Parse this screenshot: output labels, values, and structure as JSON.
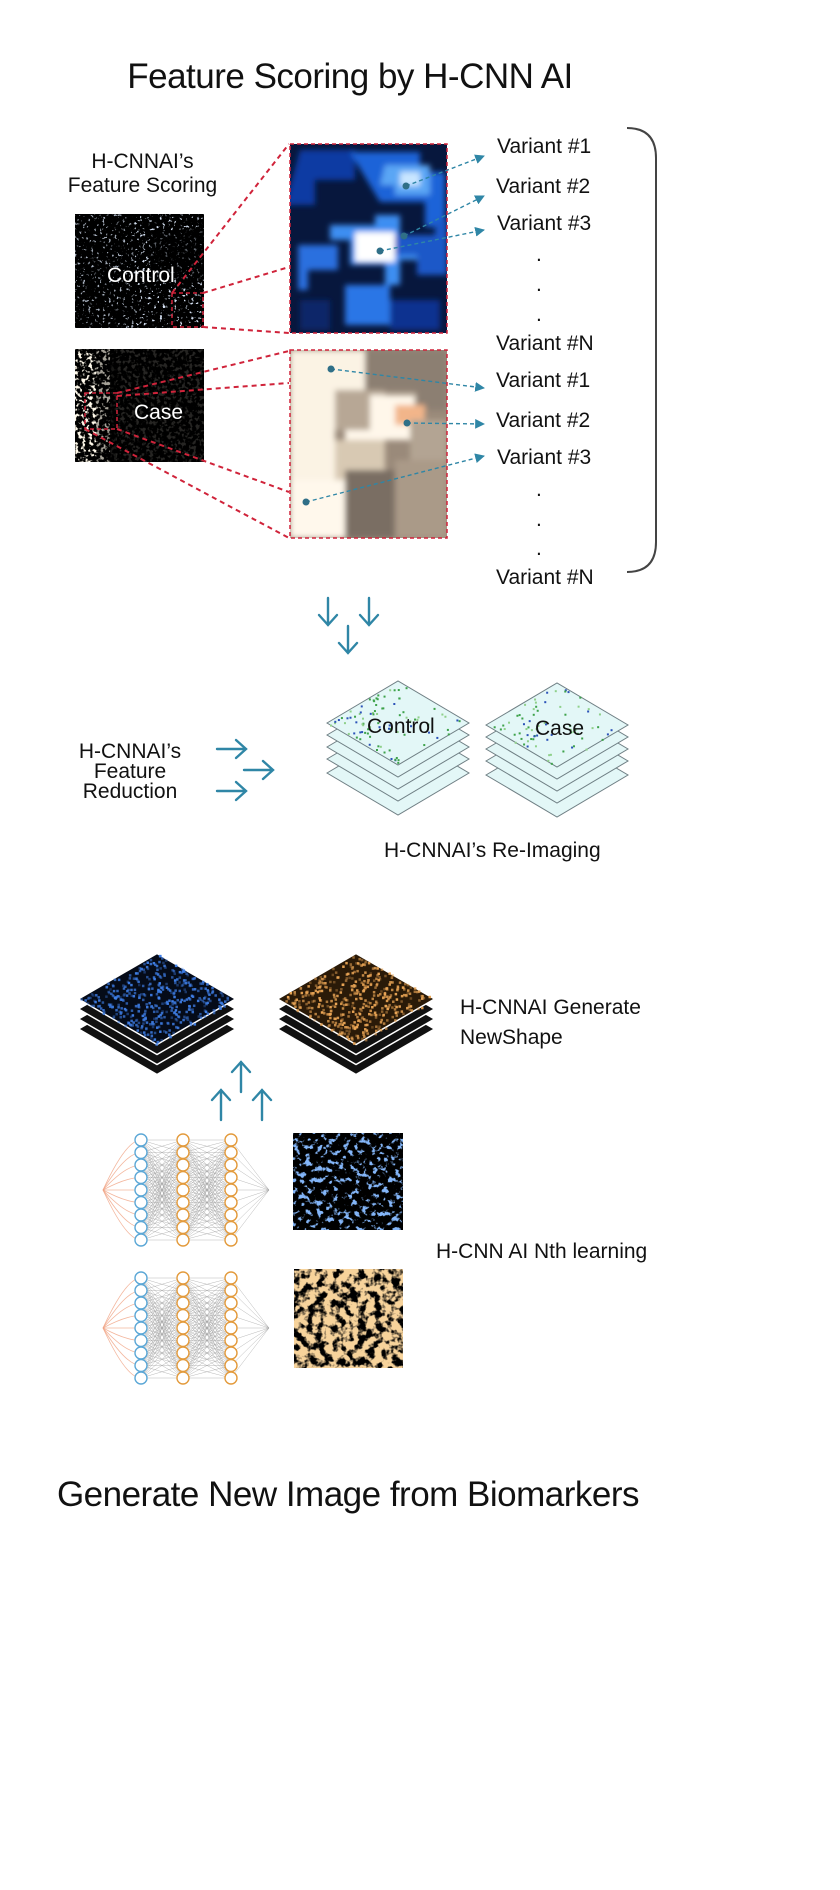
{
  "title": "Feature Scoring by H-CNN AI",
  "footer_title": "Generate New Image from Biomarkers",
  "scoring": {
    "label_line1": "H-CNNAI’s",
    "label_line2": "Feature Scoring",
    "control_label": "Control",
    "case_label": "Case",
    "control_variants": [
      "Variant #1",
      "Variant #2",
      "Variant #3",
      ".",
      ".",
      ".",
      "Variant #N"
    ],
    "case_variants": [
      "Variant #1",
      "Variant #2",
      "Variant #3",
      ".",
      ".",
      ".",
      "Variant #N"
    ]
  },
  "reduction": {
    "label_line1": "H-CNNAI’s",
    "label_line2": "Feature",
    "label_line3": "Reduction",
    "stack_control": "Control",
    "stack_case": "Case",
    "caption": "H-CNNAI’s Re-Imaging"
  },
  "generate": {
    "label_line1": "H-CNNAI Generate",
    "label_line2": "NewShape"
  },
  "learning": {
    "label": "H-CNN AI Nth learning"
  },
  "colors": {
    "accent_arrow": "#2f86a6",
    "dashed_red": "#d0233a",
    "blue_image": "#2f6fe0",
    "amber_image": "#e0a050",
    "node_blue": "#5ba7d6",
    "node_orange": "#e39a3b"
  },
  "icons": [
    "down-arrow-icon",
    "right-arrow-icon",
    "up-arrow-icon",
    "neural-network-icon"
  ]
}
